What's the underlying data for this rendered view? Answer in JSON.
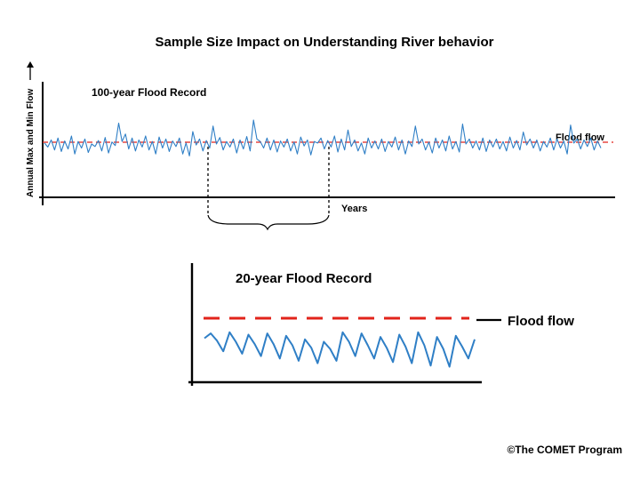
{
  "title": "Sample Size Impact on Understanding River behavior",
  "chart_data": [
    {
      "type": "line",
      "title": "100-year Flood Record",
      "xlabel": "Years",
      "ylabel": "Annual Max and Min Flow",
      "threshold_label": "Flood flow",
      "grid": false,
      "series": [
        {
          "values": [
            0.52,
            0.44,
            0.58,
            0.38,
            0.62,
            0.35,
            0.56,
            0.4,
            0.66,
            0.3,
            0.55,
            0.42,
            0.6,
            0.33,
            0.5,
            0.45,
            0.57,
            0.36,
            0.63,
            0.32,
            0.54,
            0.47,
            0.92,
            0.55,
            0.7,
            0.4,
            0.62,
            0.36,
            0.58,
            0.44,
            0.66,
            0.38,
            0.55,
            0.3,
            0.64,
            0.42,
            0.6,
            0.35,
            0.56,
            0.45,
            0.62,
            0.3,
            0.52,
            0.26,
            0.75,
            0.48,
            0.6,
            0.36,
            0.57,
            0.42,
            0.86,
            0.5,
            0.63,
            0.38,
            0.55,
            0.44,
            0.6,
            0.32,
            0.58,
            0.4,
            0.65,
            0.36,
            0.98,
            0.6,
            0.55,
            0.42,
            0.62,
            0.38,
            0.58,
            0.34,
            0.56,
            0.44,
            0.6,
            0.36,
            0.54,
            0.3,
            0.64,
            0.46,
            0.58,
            0.28,
            0.55,
            0.52,
            0.62,
            0.4,
            0.57,
            0.44,
            0.66,
            0.34,
            0.6,
            0.38,
            0.78,
            0.45,
            0.58,
            0.36,
            0.52,
            0.3,
            0.62,
            0.42,
            0.56,
            0.4,
            0.6,
            0.35,
            0.55,
            0.44,
            0.64,
            0.38,
            0.58,
            0.3,
            0.56,
            0.45,
            0.86,
            0.5,
            0.6,
            0.38,
            0.54,
            0.32,
            0.62,
            0.42,
            0.58,
            0.36,
            0.66,
            0.4,
            0.55,
            0.34,
            0.9,
            0.5,
            0.6,
            0.42,
            0.56,
            0.38,
            0.62,
            0.35,
            0.58,
            0.44,
            0.6,
            0.4,
            0.55,
            0.36,
            0.64,
            0.42,
            0.57,
            0.38,
            0.74,
            0.48,
            0.6,
            0.42,
            0.58,
            0.36,
            0.55,
            0.44,
            0.62,
            0.38,
            0.6,
            0.42,
            0.56,
            0.3,
            0.88,
            0.52,
            0.6,
            0.4,
            0.58,
            0.45,
            0.62,
            0.38,
            0.56,
            0.42
          ]
        }
      ]
    },
    {
      "type": "line",
      "title": "20-year Flood Record",
      "threshold_label": "Flood flow",
      "grid": false,
      "series": [
        {
          "values": [
            0.56,
            0.64,
            0.52,
            0.34,
            0.66,
            0.5,
            0.3,
            0.62,
            0.46,
            0.26,
            0.64,
            0.46,
            0.22,
            0.6,
            0.44,
            0.18,
            0.54,
            0.4,
            0.14,
            0.5,
            0.38,
            0.18,
            0.66,
            0.5,
            0.26,
            0.64,
            0.44,
            0.22,
            0.58,
            0.4,
            0.16,
            0.62,
            0.42,
            0.14,
            0.66,
            0.44,
            0.1,
            0.58,
            0.38,
            0.08,
            0.6,
            0.42,
            0.22,
            0.54
          ]
        }
      ]
    }
  ],
  "bracket": true,
  "credit": "©The COMET Program",
  "colors": {
    "line": "#2f7fc6",
    "threshold": "#e2231a",
    "axis": "#000000",
    "legend_dash": "#000000"
  }
}
